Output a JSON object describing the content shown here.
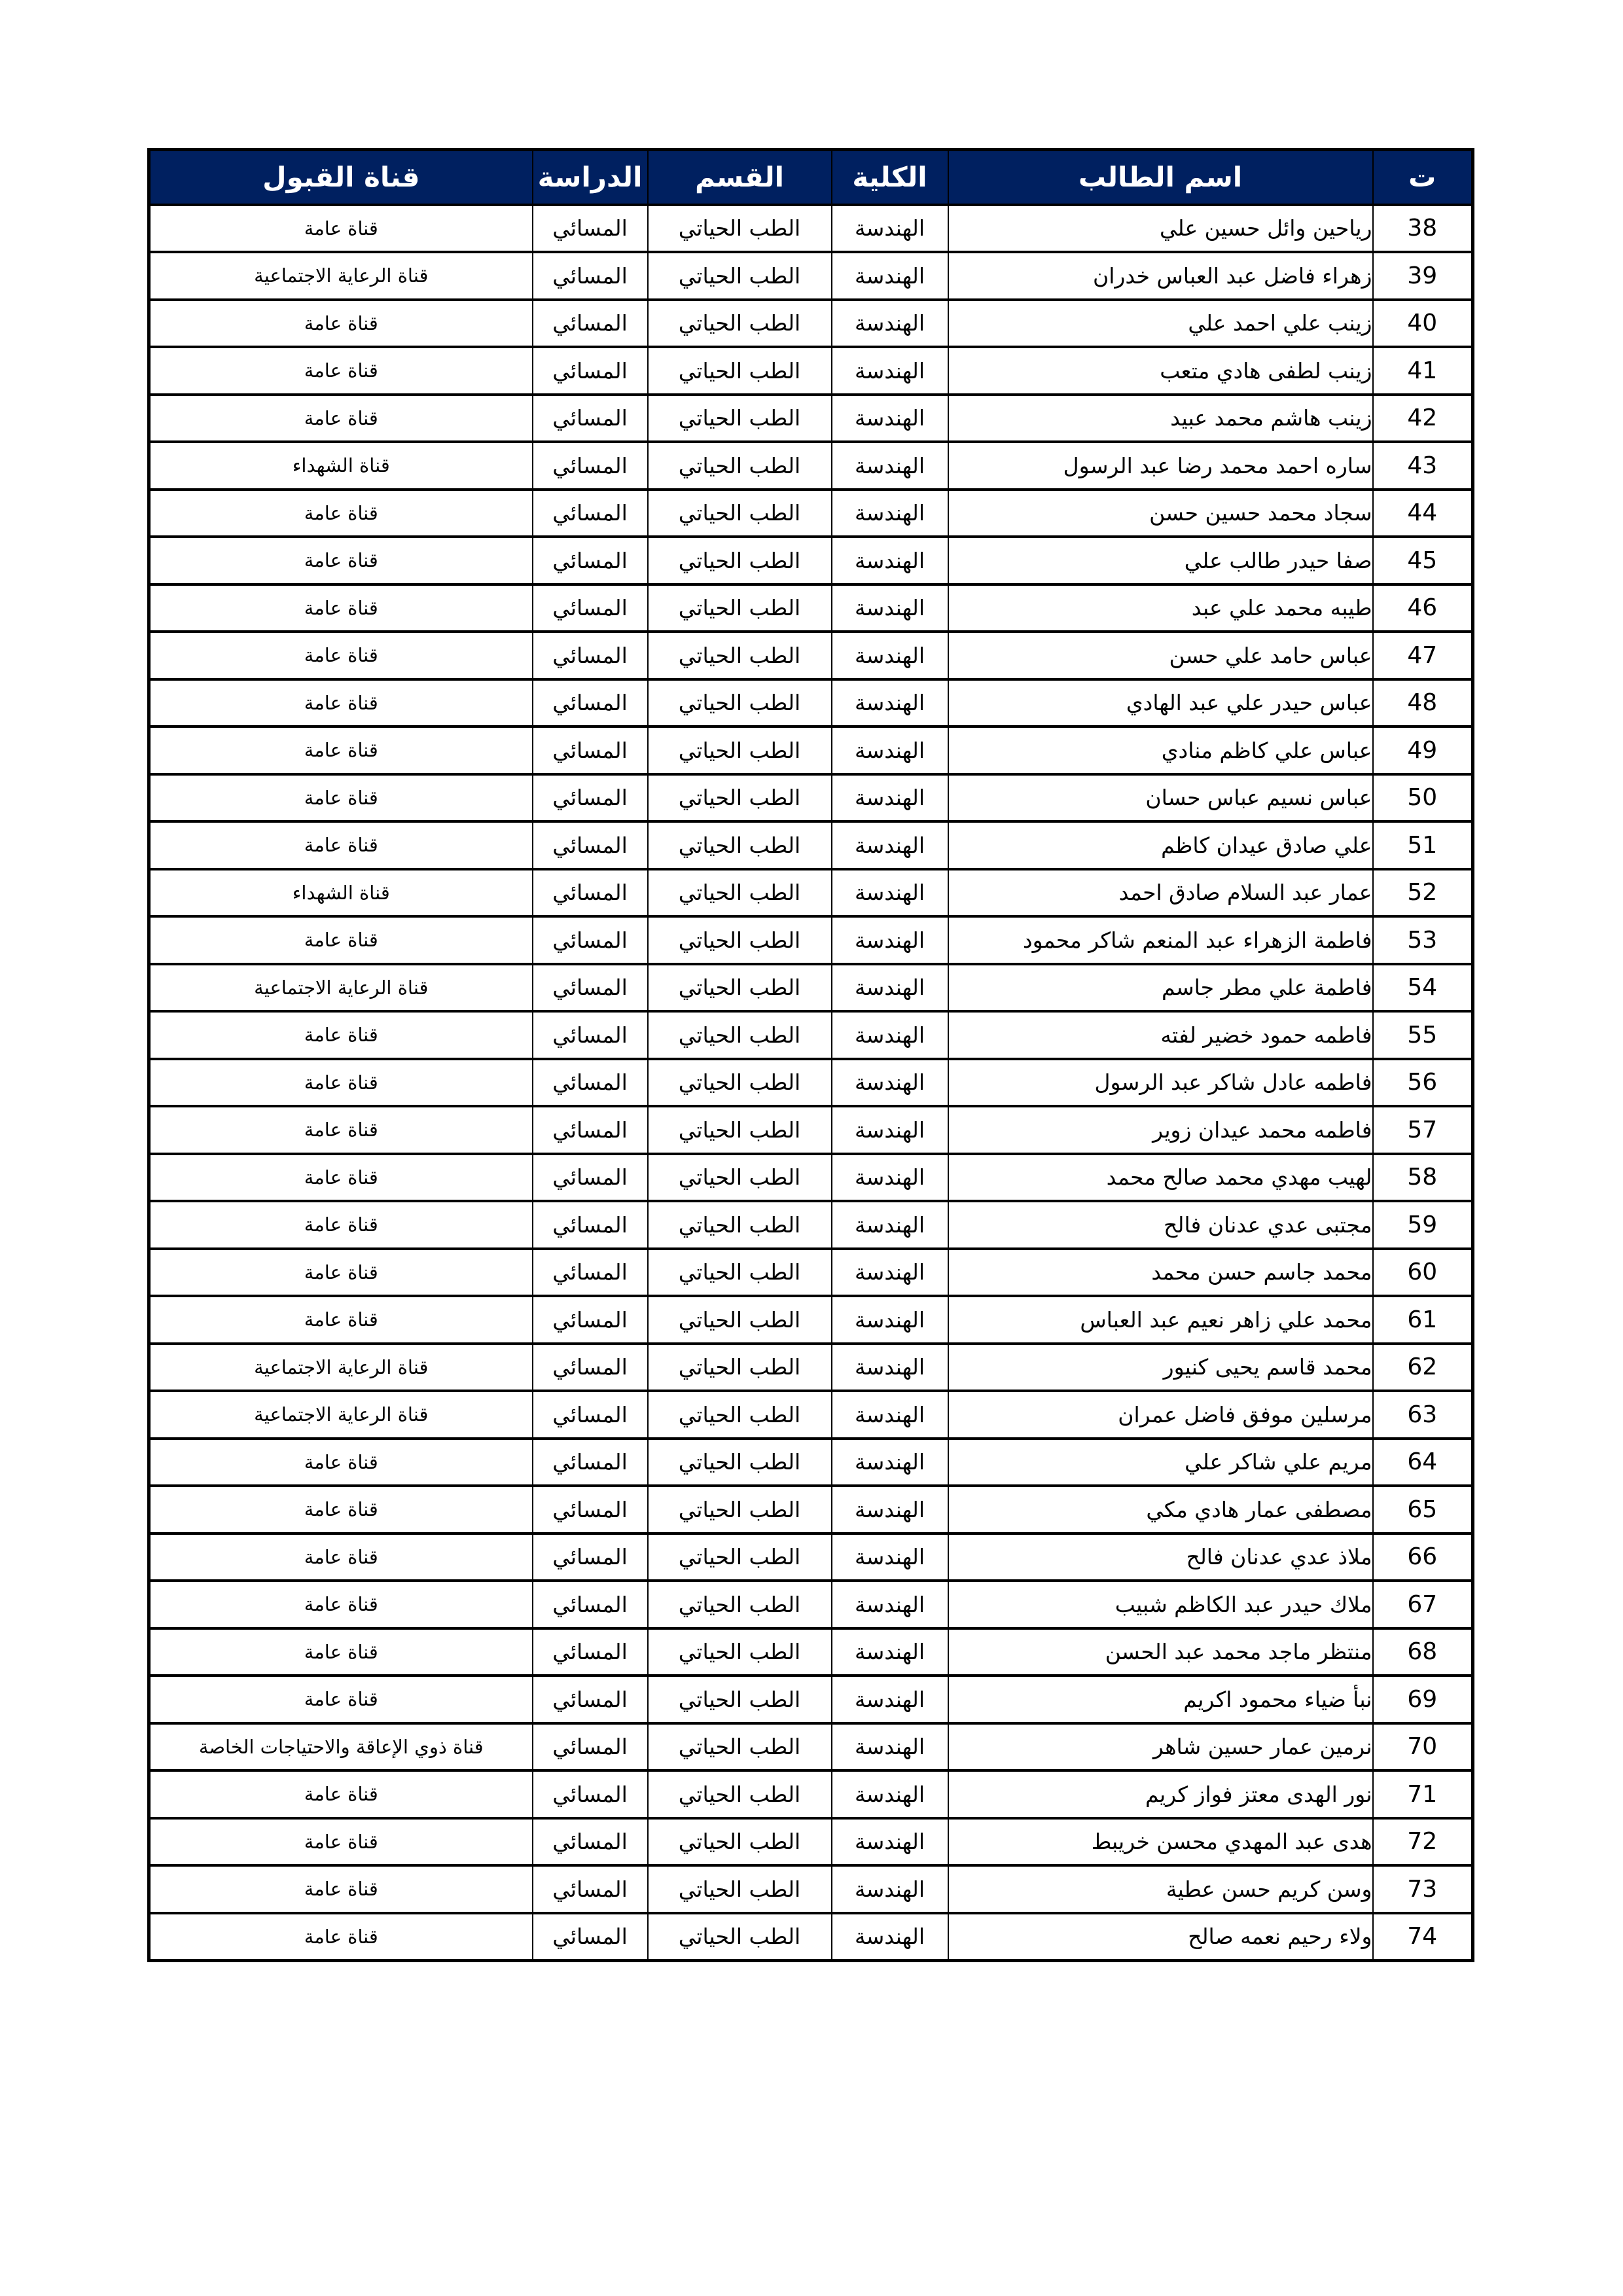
{
  "colors": {
    "header_bg": "#002060",
    "header_text": "#ffffff",
    "border": "#000000",
    "page_bg": "#ffffff"
  },
  "table": {
    "headers": {
      "index": "ت",
      "name": "اسم الطالب",
      "college": "الكلية",
      "department": "القسم",
      "study": "الدراسة",
      "channel": "قناة القبول"
    },
    "rows": [
      {
        "index": "38",
        "name": "رياحين وائل حسين علي",
        "college": "الهندسة",
        "department": "الطب الحياتي",
        "study": "المسائي",
        "channel": "قناة عامة"
      },
      {
        "index": "39",
        "name": "زهراء فاضل عبد العباس خدران",
        "college": "الهندسة",
        "department": "الطب الحياتي",
        "study": "المسائي",
        "channel": "قناة الرعاية الاجتماعية"
      },
      {
        "index": "40",
        "name": "زينب علي احمد علي",
        "college": "الهندسة",
        "department": "الطب الحياتي",
        "study": "المسائي",
        "channel": "قناة عامة"
      },
      {
        "index": "41",
        "name": "زينب لطفى هادي متعب",
        "college": "الهندسة",
        "department": "الطب الحياتي",
        "study": "المسائي",
        "channel": "قناة عامة"
      },
      {
        "index": "42",
        "name": "زينب هاشم محمد عبيد",
        "college": "الهندسة",
        "department": "الطب الحياتي",
        "study": "المسائي",
        "channel": "قناة عامة"
      },
      {
        "index": "43",
        "name": "ساره احمد محمد رضا عبد الرسول",
        "college": "الهندسة",
        "department": "الطب الحياتي",
        "study": "المسائي",
        "channel": "قناة الشهداء"
      },
      {
        "index": "44",
        "name": "سجاد محمد حسين حسن",
        "college": "الهندسة",
        "department": "الطب الحياتي",
        "study": "المسائي",
        "channel": "قناة عامة"
      },
      {
        "index": "45",
        "name": "صفا حيدر طالب علي",
        "college": "الهندسة",
        "department": "الطب الحياتي",
        "study": "المسائي",
        "channel": "قناة عامة"
      },
      {
        "index": "46",
        "name": "طيبه محمد علي عبد",
        "college": "الهندسة",
        "department": "الطب الحياتي",
        "study": "المسائي",
        "channel": "قناة عامة"
      },
      {
        "index": "47",
        "name": "عباس حامد علي حسن",
        "college": "الهندسة",
        "department": "الطب الحياتي",
        "study": "المسائي",
        "channel": "قناة عامة"
      },
      {
        "index": "48",
        "name": "عباس حيدر علي عبد الهادي",
        "college": "الهندسة",
        "department": "الطب الحياتي",
        "study": "المسائي",
        "channel": "قناة عامة"
      },
      {
        "index": "49",
        "name": "عباس علي كاظم منادي",
        "college": "الهندسة",
        "department": "الطب الحياتي",
        "study": "المسائي",
        "channel": "قناة عامة"
      },
      {
        "index": "50",
        "name": "عباس نسيم عباس حسان",
        "college": "الهندسة",
        "department": "الطب الحياتي",
        "study": "المسائي",
        "channel": "قناة عامة"
      },
      {
        "index": "51",
        "name": "علي صادق عيدان كاظم",
        "college": "الهندسة",
        "department": "الطب الحياتي",
        "study": "المسائي",
        "channel": "قناة عامة"
      },
      {
        "index": "52",
        "name": "عمار عبد السلام صادق احمد",
        "college": "الهندسة",
        "department": "الطب الحياتي",
        "study": "المسائي",
        "channel": "قناة الشهداء"
      },
      {
        "index": "53",
        "name": "فاطمة الزهراء عبد المنعم شاكر محمود",
        "college": "الهندسة",
        "department": "الطب الحياتي",
        "study": "المسائي",
        "channel": "قناة عامة"
      },
      {
        "index": "54",
        "name": "فاطمة علي مطر جاسم",
        "college": "الهندسة",
        "department": "الطب الحياتي",
        "study": "المسائي",
        "channel": "قناة الرعاية الاجتماعية"
      },
      {
        "index": "55",
        "name": "فاطمه حمود خضير لفته",
        "college": "الهندسة",
        "department": "الطب الحياتي",
        "study": "المسائي",
        "channel": "قناة عامة"
      },
      {
        "index": "56",
        "name": "فاطمه عادل شاكر عبد الرسول",
        "college": "الهندسة",
        "department": "الطب الحياتي",
        "study": "المسائي",
        "channel": "قناة عامة"
      },
      {
        "index": "57",
        "name": "فاطمه محمد عيدان زوير",
        "college": "الهندسة",
        "department": "الطب الحياتي",
        "study": "المسائي",
        "channel": "قناة عامة"
      },
      {
        "index": "58",
        "name": "لهيب مهدي محمد صالح محمد",
        "college": "الهندسة",
        "department": "الطب الحياتي",
        "study": "المسائي",
        "channel": "قناة عامة"
      },
      {
        "index": "59",
        "name": "مجتبى عدي عدنان فالح",
        "college": "الهندسة",
        "department": "الطب الحياتي",
        "study": "المسائي",
        "channel": "قناة عامة"
      },
      {
        "index": "60",
        "name": "محمد جاسم حسن محمد",
        "college": "الهندسة",
        "department": "الطب الحياتي",
        "study": "المسائي",
        "channel": "قناة عامة"
      },
      {
        "index": "61",
        "name": "محمد علي زاهر نعيم عبد العباس",
        "college": "الهندسة",
        "department": "الطب الحياتي",
        "study": "المسائي",
        "channel": "قناة عامة"
      },
      {
        "index": "62",
        "name": "محمد قاسم يحيى كنيور",
        "college": "الهندسة",
        "department": "الطب الحياتي",
        "study": "المسائي",
        "channel": "قناة الرعاية الاجتماعية"
      },
      {
        "index": "63",
        "name": "مرسلين موفق فاضل عمران",
        "college": "الهندسة",
        "department": "الطب الحياتي",
        "study": "المسائي",
        "channel": "قناة الرعاية الاجتماعية"
      },
      {
        "index": "64",
        "name": "مريم علي شاكر علي",
        "college": "الهندسة",
        "department": "الطب الحياتي",
        "study": "المسائي",
        "channel": "قناة عامة"
      },
      {
        "index": "65",
        "name": "مصطفى عمار هادي مكي",
        "college": "الهندسة",
        "department": "الطب الحياتي",
        "study": "المسائي",
        "channel": "قناة عامة"
      },
      {
        "index": "66",
        "name": "ملاذ عدي عدنان فالح",
        "college": "الهندسة",
        "department": "الطب الحياتي",
        "study": "المسائي",
        "channel": "قناة عامة"
      },
      {
        "index": "67",
        "name": "ملاك حيدر عبد الكاظم شبيب",
        "college": "الهندسة",
        "department": "الطب الحياتي",
        "study": "المسائي",
        "channel": "قناة عامة"
      },
      {
        "index": "68",
        "name": "منتظر ماجد محمد عبد الحسن",
        "college": "الهندسة",
        "department": "الطب الحياتي",
        "study": "المسائي",
        "channel": "قناة عامة"
      },
      {
        "index": "69",
        "name": "نبأ ضياء محمود اكريم",
        "college": "الهندسة",
        "department": "الطب الحياتي",
        "study": "المسائي",
        "channel": "قناة عامة"
      },
      {
        "index": "70",
        "name": "نرمين عمار حسين شاهر",
        "college": "الهندسة",
        "department": "الطب الحياتي",
        "study": "المسائي",
        "channel": "قناة ذوي الإعاقة والاحتياجات الخاصة"
      },
      {
        "index": "71",
        "name": "نور الهدى معتز فواز كريم",
        "college": "الهندسة",
        "department": "الطب الحياتي",
        "study": "المسائي",
        "channel": "قناة عامة"
      },
      {
        "index": "72",
        "name": "هدى عبد المهدي محسن خريبط",
        "college": "الهندسة",
        "department": "الطب الحياتي",
        "study": "المسائي",
        "channel": "قناة عامة"
      },
      {
        "index": "73",
        "name": "وسن كريم حسن عطية",
        "college": "الهندسة",
        "department": "الطب الحياتي",
        "study": "المسائي",
        "channel": "قناة عامة"
      },
      {
        "index": "74",
        "name": "ولاء رحيم نعمه صالح",
        "college": "الهندسة",
        "department": "الطب الحياتي",
        "study": "المسائي",
        "channel": "قناة عامة"
      }
    ]
  }
}
